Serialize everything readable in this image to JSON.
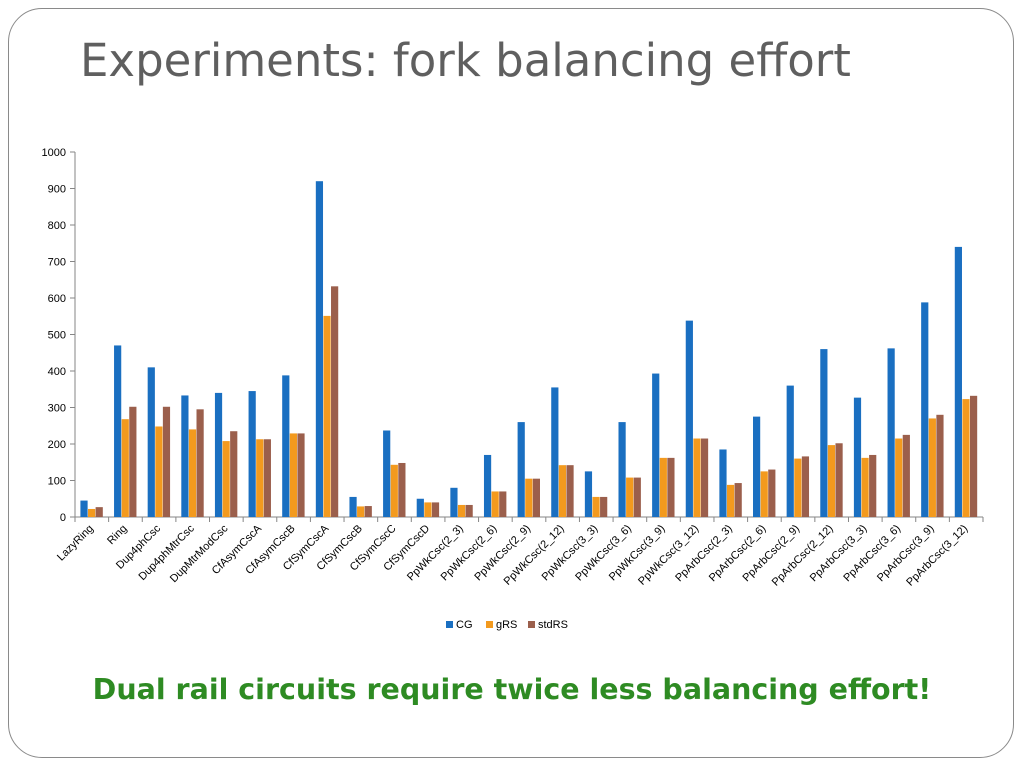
{
  "slide": {
    "title": "Experiments: fork balancing effort",
    "conclusion": "Dual rail circuits require twice less balancing effort!"
  },
  "colors": {
    "CG": "#1a6fc1",
    "gRS": "#f39a1e",
    "stdRS": "#9b5f4c",
    "title": "#5f5f5f",
    "conclusion": "#2e8b23"
  },
  "chart_data": {
    "type": "bar",
    "title": "",
    "xlabel": "",
    "ylabel": "",
    "ylim": [
      0,
      1000
    ],
    "yticks": [
      0,
      100,
      200,
      300,
      400,
      500,
      600,
      700,
      800,
      900,
      1000
    ],
    "grid": false,
    "legend_position": "bottom",
    "categories": [
      "LazyRing",
      "Ring",
      "Dup4phCsc",
      "Dup4phMtrCsc",
      "DupMtrModCsc",
      "CfAsymCscA",
      "CfAsymCscB",
      "CfSymCscA",
      "CfSymCscB",
      "CfSymCscC",
      "CfSymCscD",
      "PpWkCsc(2_3)",
      "PpWkCsc(2_6)",
      "PpWkCsc(2_9)",
      "PpWkCsc(2_12)",
      "PpWkCsc(3_3)",
      "PpWkCsc(3_6)",
      "PpWkCsc(3_9)",
      "PpWkCsc(3_12)",
      "PpArbCsc(2_3)",
      "PpArbCsc(2_6)",
      "PpArbCsc(2_9)",
      "PpArbCsc(2_12)",
      "PpArbCsc(3_3)",
      "PpArbCsc(3_6)",
      "PpArbCsc(3_9)",
      "PpArbCsc(3_12)"
    ],
    "series": [
      {
        "name": "CG",
        "values": [
          45,
          470,
          410,
          333,
          340,
          345,
          388,
          920,
          55,
          237,
          50,
          80,
          170,
          260,
          355,
          125,
          260,
          393,
          538,
          185,
          275,
          360,
          460,
          327,
          462,
          588,
          740
        ]
      },
      {
        "name": "gRS",
        "values": [
          22,
          268,
          248,
          240,
          208,
          213,
          229,
          551,
          29,
          143,
          40,
          33,
          70,
          105,
          142,
          55,
          108,
          162,
          215,
          88,
          125,
          160,
          197,
          162,
          215,
          270,
          323
        ]
      },
      {
        "name": "stdRS",
        "values": [
          27,
          302,
          302,
          295,
          235,
          213,
          229,
          632,
          30,
          148,
          40,
          33,
          70,
          105,
          142,
          55,
          108,
          162,
          215,
          93,
          130,
          166,
          202,
          170,
          225,
          280,
          332
        ]
      }
    ]
  }
}
